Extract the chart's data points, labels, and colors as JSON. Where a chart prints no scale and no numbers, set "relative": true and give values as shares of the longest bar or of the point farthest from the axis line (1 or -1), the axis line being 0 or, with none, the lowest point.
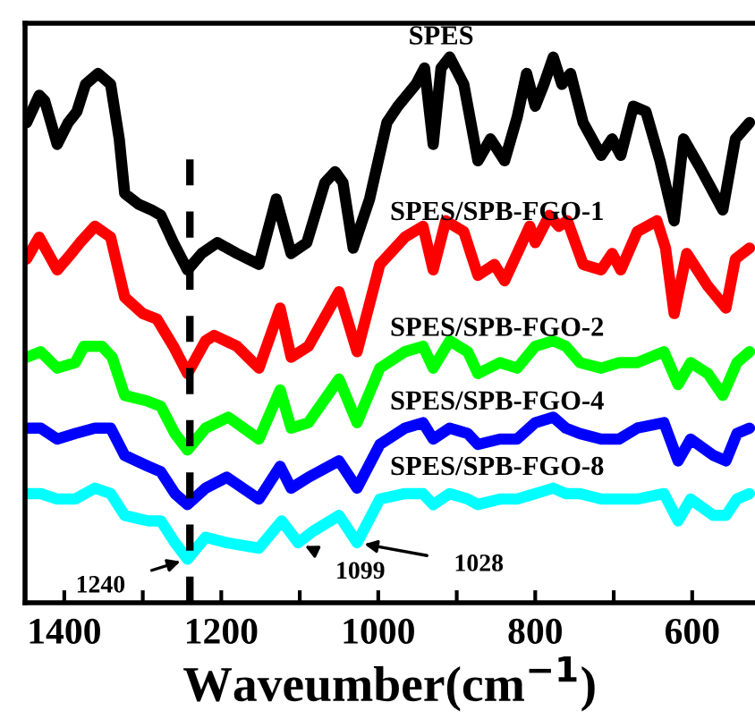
{
  "chart_data": {
    "type": "line",
    "relative": true,
    "xlabel": "Waveumber(cm$^{−1}$)",
    "xlim": [
      1450,
      520
    ],
    "xticks": [
      1400,
      {
        "value": 1300,
        "label": null
      },
      1200,
      {
        "value": 1100,
        "label": null
      },
      1000,
      {
        "value": 900,
        "label": null
      },
      800,
      {
        "value": 700,
        "label": null
      },
      600
    ],
    "tick_labels": "x",
    "grid": false,
    "legend": false,
    "marker": "none",
    "line_style": "solid",
    "x": [
      1448,
      1432,
      1425,
      1409,
      1395,
      1384,
      1373,
      1357,
      1341,
      1330,
      1323,
      1305,
      1289,
      1277,
      1261,
      1243,
      1225,
      1205,
      1180,
      1152,
      1130,
      1111,
      1091,
      1068,
      1055,
      1045,
      1032,
      1011,
      989,
      975,
      952,
      941,
      930,
      920,
      909,
      891,
      873,
      857,
      839,
      823,
      811,
      800,
      789,
      777,
      766,
      755,
      739,
      716,
      702,
      691,
      675,
      659,
      641,
      623,
      611,
      591,
      561,
      545,
      527
    ],
    "series": [
      {
        "name": "SPES",
        "color": "#000000",
        "values": [
          0.88,
          0.93,
          0.92,
          0.84,
          0.88,
          0.9,
          0.95,
          0.97,
          0.95,
          0.85,
          0.75,
          0.73,
          0.72,
          0.71,
          0.66,
          0.61,
          0.64,
          0.66,
          0.64,
          0.62,
          0.74,
          0.64,
          0.66,
          0.77,
          0.79,
          0.77,
          0.65,
          0.74,
          0.88,
          0.91,
          0.95,
          0.98,
          0.84,
          0.98,
          1.0,
          0.95,
          0.81,
          0.85,
          0.81,
          0.89,
          0.97,
          0.91,
          0.95,
          1.0,
          0.95,
          0.97,
          0.88,
          0.82,
          0.85,
          0.82,
          0.91,
          0.9,
          0.81,
          0.7,
          0.85,
          0.8,
          0.72,
          0.85,
          0.88
        ]
      },
      {
        "name": "SPES/SPB-FGO-1",
        "color": "#ff0000",
        "x": [
          1448,
          1432,
          1409,
          1391,
          1380,
          1361,
          1341,
          1323,
          1300,
          1282,
          1261,
          1243,
          1220,
          1209,
          1180,
          1152,
          1125,
          1111,
          1089,
          1050,
          1027,
          998,
          966,
          943,
          930,
          914,
          891,
          873,
          852,
          839,
          807,
          800,
          782,
          770,
          759,
          739,
          716,
          702,
          691,
          670,
          645,
          634,
          623,
          607,
          580,
          557,
          545,
          527
        ],
        "values": [
          0.63,
          0.67,
          0.61,
          0.64,
          0.66,
          0.69,
          0.67,
          0.56,
          0.53,
          0.52,
          0.47,
          0.42,
          0.48,
          0.49,
          0.47,
          0.43,
          0.54,
          0.45,
          0.47,
          0.57,
          0.46,
          0.62,
          0.67,
          0.69,
          0.61,
          0.7,
          0.68,
          0.6,
          0.62,
          0.59,
          0.69,
          0.66,
          0.71,
          0.69,
          0.7,
          0.62,
          0.61,
          0.64,
          0.61,
          0.68,
          0.7,
          0.65,
          0.53,
          0.64,
          0.58,
          0.54,
          0.63,
          0.65
        ]
      },
      {
        "name": "SPES/SPB-FGO-2",
        "color": "#00ff00",
        "x": [
          1448,
          1430,
          1409,
          1386,
          1375,
          1352,
          1339,
          1323,
          1295,
          1277,
          1259,
          1243,
          1220,
          1191,
          1152,
          1125,
          1111,
          1089,
          1050,
          1027,
          998,
          966,
          943,
          930,
          909,
          886,
          873,
          845,
          823,
          800,
          777,
          761,
          743,
          716,
          693,
          670,
          636,
          618,
          602,
          580,
          561,
          543,
          527
        ],
        "values": [
          0.45,
          0.46,
          0.43,
          0.44,
          0.47,
          0.47,
          0.45,
          0.38,
          0.37,
          0.36,
          0.31,
          0.28,
          0.32,
          0.34,
          0.3,
          0.39,
          0.32,
          0.33,
          0.41,
          0.33,
          0.43,
          0.46,
          0.47,
          0.43,
          0.48,
          0.46,
          0.42,
          0.44,
          0.43,
          0.47,
          0.48,
          0.47,
          0.44,
          0.43,
          0.44,
          0.44,
          0.46,
          0.4,
          0.44,
          0.42,
          0.38,
          0.44,
          0.46
        ]
      },
      {
        "name": "SPES/SPB-FGO-4",
        "color": "#0000ff",
        "x": [
          1448,
          1430,
          1409,
          1386,
          1361,
          1341,
          1323,
          1293,
          1277,
          1259,
          1243,
          1220,
          1193,
          1152,
          1125,
          1111,
          1089,
          1050,
          1027,
          998,
          966,
          943,
          930,
          909,
          886,
          873,
          845,
          823,
          800,
          777,
          761,
          743,
          716,
          693,
          670,
          636,
          618,
          602,
          573,
          557,
          543,
          527
        ],
        "values": [
          0.32,
          0.32,
          0.3,
          0.31,
          0.32,
          0.32,
          0.27,
          0.25,
          0.24,
          0.2,
          0.18,
          0.21,
          0.23,
          0.19,
          0.25,
          0.21,
          0.23,
          0.26,
          0.21,
          0.29,
          0.32,
          0.33,
          0.3,
          0.32,
          0.31,
          0.29,
          0.3,
          0.3,
          0.33,
          0.34,
          0.32,
          0.31,
          0.3,
          0.3,
          0.32,
          0.33,
          0.26,
          0.3,
          0.27,
          0.26,
          0.31,
          0.32
        ]
      },
      {
        "name": "SPES/SPB-FGO-8",
        "color": "#00ffff",
        "x": [
          1448,
          1430,
          1409,
          1386,
          1361,
          1341,
          1323,
          1293,
          1277,
          1259,
          1243,
          1220,
          1193,
          1152,
          1123,
          1102,
          1084,
          1050,
          1027,
          998,
          966,
          943,
          930,
          909,
          886,
          873,
          845,
          823,
          800,
          777,
          761,
          743,
          716,
          693,
          670,
          636,
          618,
          602,
          573,
          557,
          543,
          527
        ],
        "values": [
          0.2,
          0.2,
          0.19,
          0.19,
          0.21,
          0.2,
          0.16,
          0.15,
          0.15,
          0.11,
          0.08,
          0.12,
          0.11,
          0.1,
          0.15,
          0.11,
          0.13,
          0.16,
          0.11,
          0.19,
          0.2,
          0.2,
          0.18,
          0.2,
          0.19,
          0.18,
          0.19,
          0.19,
          0.2,
          0.21,
          0.2,
          0.2,
          0.19,
          0.19,
          0.19,
          0.2,
          0.15,
          0.19,
          0.16,
          0.16,
          0.19,
          0.2
        ]
      }
    ],
    "ref_lines": [
      {
        "axis": "x",
        "value": 1240,
        "label": null,
        "color": "#000000",
        "line_style": "dashed"
      }
    ],
    "annotations": [
      {
        "text": "1240",
        "x": 1243,
        "y": 0.08
      },
      {
        "text": "1099",
        "x": 1102,
        "y": 0.11
      },
      {
        "text": "1028",
        "x": 1027,
        "y": 0.11
      }
    ]
  }
}
